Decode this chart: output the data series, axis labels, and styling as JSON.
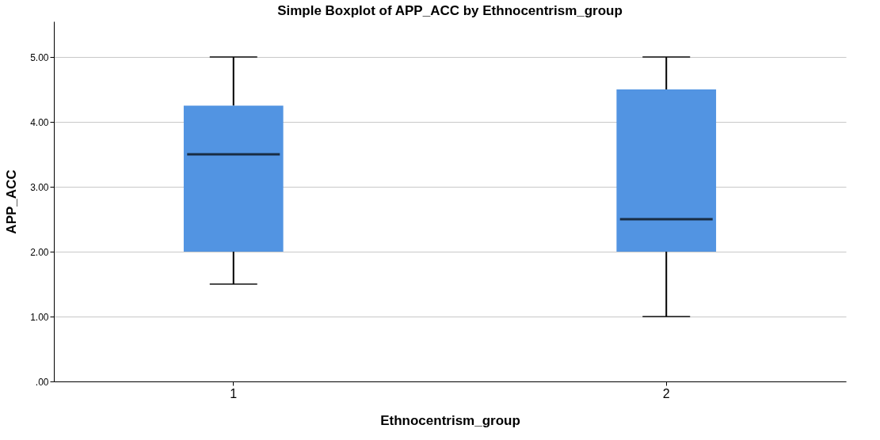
{
  "chart_data": {
    "type": "box",
    "title": "Simple Boxplot of APP_ACC by Ethnocentrism_group",
    "xlabel": "Ethnocentrism_group",
    "ylabel": "APP_ACC",
    "categories": [
      "1",
      "2"
    ],
    "boxes": [
      {
        "low": 1.5,
        "q1": 2.0,
        "median": 3.5,
        "q3": 4.25,
        "high": 5.0
      },
      {
        "low": 1.0,
        "q1": 2.0,
        "median": 2.5,
        "q3": 4.5,
        "high": 5.0
      }
    ],
    "color": "#5294e2",
    "ylim": [
      0,
      5.55
    ],
    "yticks": [
      {
        "value": 0,
        "label": ".00"
      },
      {
        "value": 1,
        "label": "1.00"
      },
      {
        "value": 2,
        "label": "2.00"
      },
      {
        "value": 3,
        "label": "3.00"
      },
      {
        "value": 4,
        "label": "4.00"
      },
      {
        "value": 5,
        "label": "5.00"
      }
    ],
    "grid": "y"
  }
}
